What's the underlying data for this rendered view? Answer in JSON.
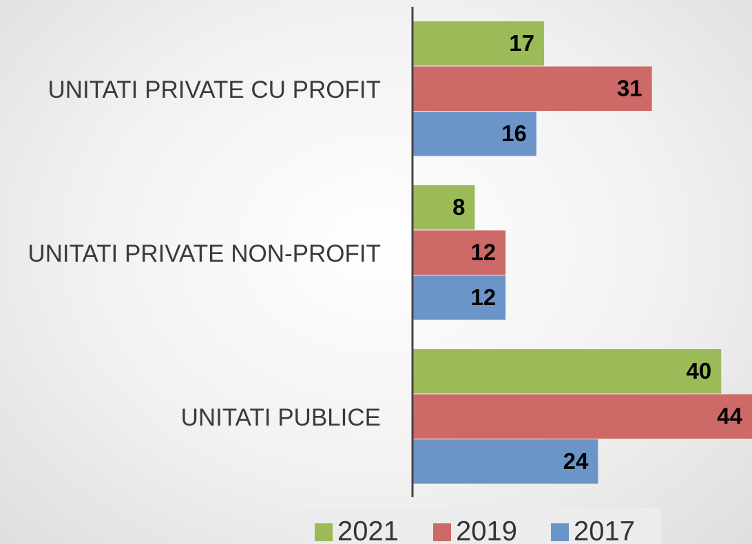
{
  "chart_data": {
    "type": "hbar",
    "categories": [
      "UNITATI PRIVATE CU PROFIT",
      "UNITATI PRIVATE NON-PROFIT",
      "UNITATI PUBLICE"
    ],
    "series": [
      {
        "name": "2021",
        "color": "#9bbb59",
        "values": [
          17,
          8,
          40
        ]
      },
      {
        "name": "2019",
        "color": "#cd6967",
        "values": [
          31,
          12,
          44
        ]
      },
      {
        "name": "2017",
        "color": "#6b95c9",
        "values": [
          16,
          12,
          24
        ]
      }
    ],
    "legend": "bottom"
  }
}
